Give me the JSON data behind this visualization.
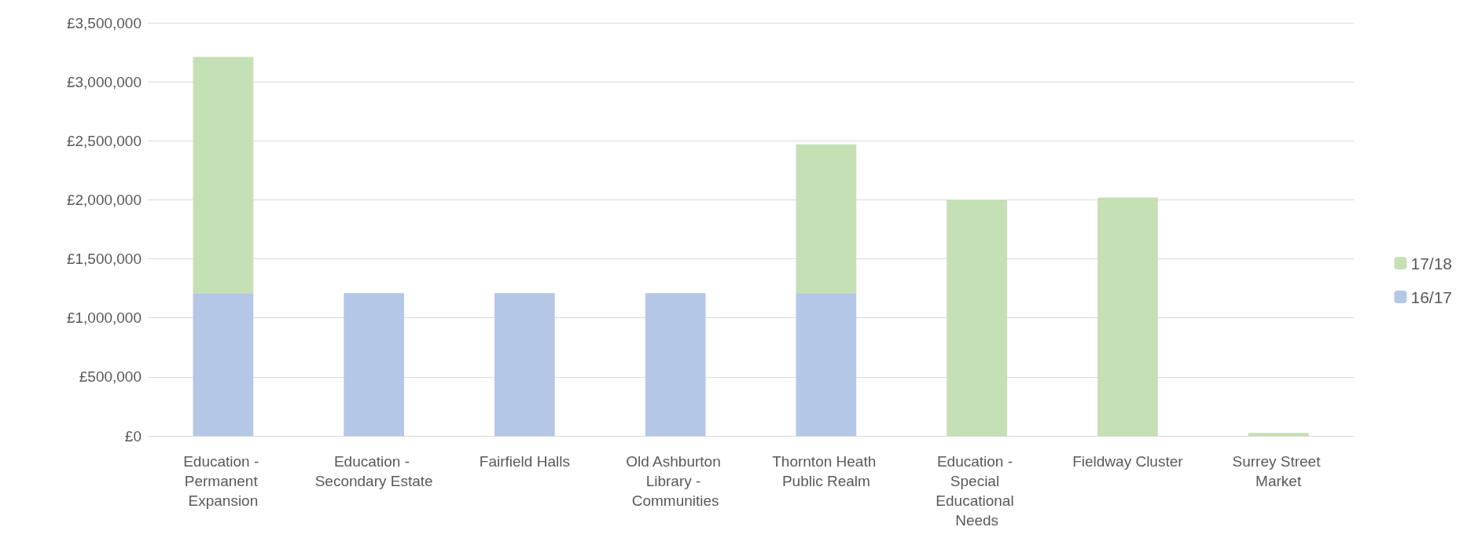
{
  "chart_data": {
    "type": "bar",
    "stacked": true,
    "categories": [
      "Education - Permanent Expansion",
      "Education - Secondary Estate",
      "Fairfield Halls",
      "Old Ashburton Library - Communities",
      "Thornton Heath Public Realm",
      "Education - Special Educational Needs",
      "Fieldway Cluster",
      "Surrey Street Market"
    ],
    "series": [
      {
        "name": "16/17",
        "color": "#b4c7e7",
        "values": [
          1210000,
          1210000,
          1210000,
          1210000,
          1210000,
          null,
          null,
          null
        ]
      },
      {
        "name": "17/18",
        "color": "#c5e0b4",
        "values": [
          2000000,
          null,
          null,
          null,
          1260000,
          2000000,
          2020000,
          25000
        ]
      }
    ],
    "ylim": [
      0,
      3500000
    ],
    "yticks": [
      {
        "value": 0,
        "label": "£0"
      },
      {
        "value": 500000,
        "label": "£500,000"
      },
      {
        "value": 1000000,
        "label": "£1,000,000"
      },
      {
        "value": 1500000,
        "label": "£1,500,000"
      },
      {
        "value": 2000000,
        "label": "£2,000,000"
      },
      {
        "value": 2500000,
        "label": "£2,500,000"
      },
      {
        "value": 3000000,
        "label": "£3,000,000"
      },
      {
        "value": 3500000,
        "label": "£3,500,000"
      }
    ],
    "grid": "y",
    "legend": "right"
  }
}
